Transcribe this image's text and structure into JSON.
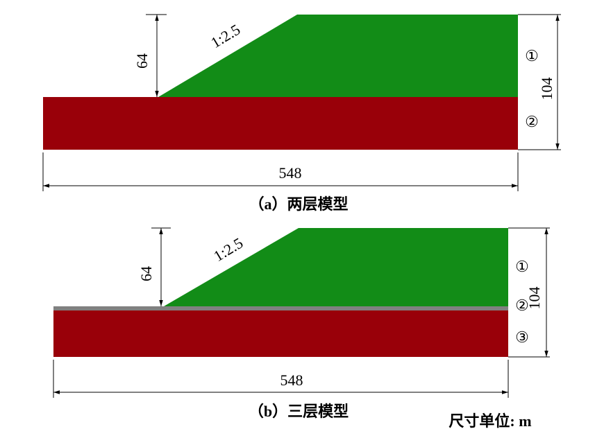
{
  "panels": [
    {
      "slope": "1:2.5",
      "height": 64,
      "total_height": 104,
      "width": 548,
      "layers": [
        "①",
        "②"
      ],
      "caption": "（a）两层模型"
    },
    {
      "slope": "1:2.5",
      "height": 64,
      "total_height": 104,
      "width": 548,
      "layers": [
        "①",
        "②",
        "③"
      ],
      "caption": "（b）三层模型"
    }
  ],
  "unit_note": "尺寸单位: m"
}
